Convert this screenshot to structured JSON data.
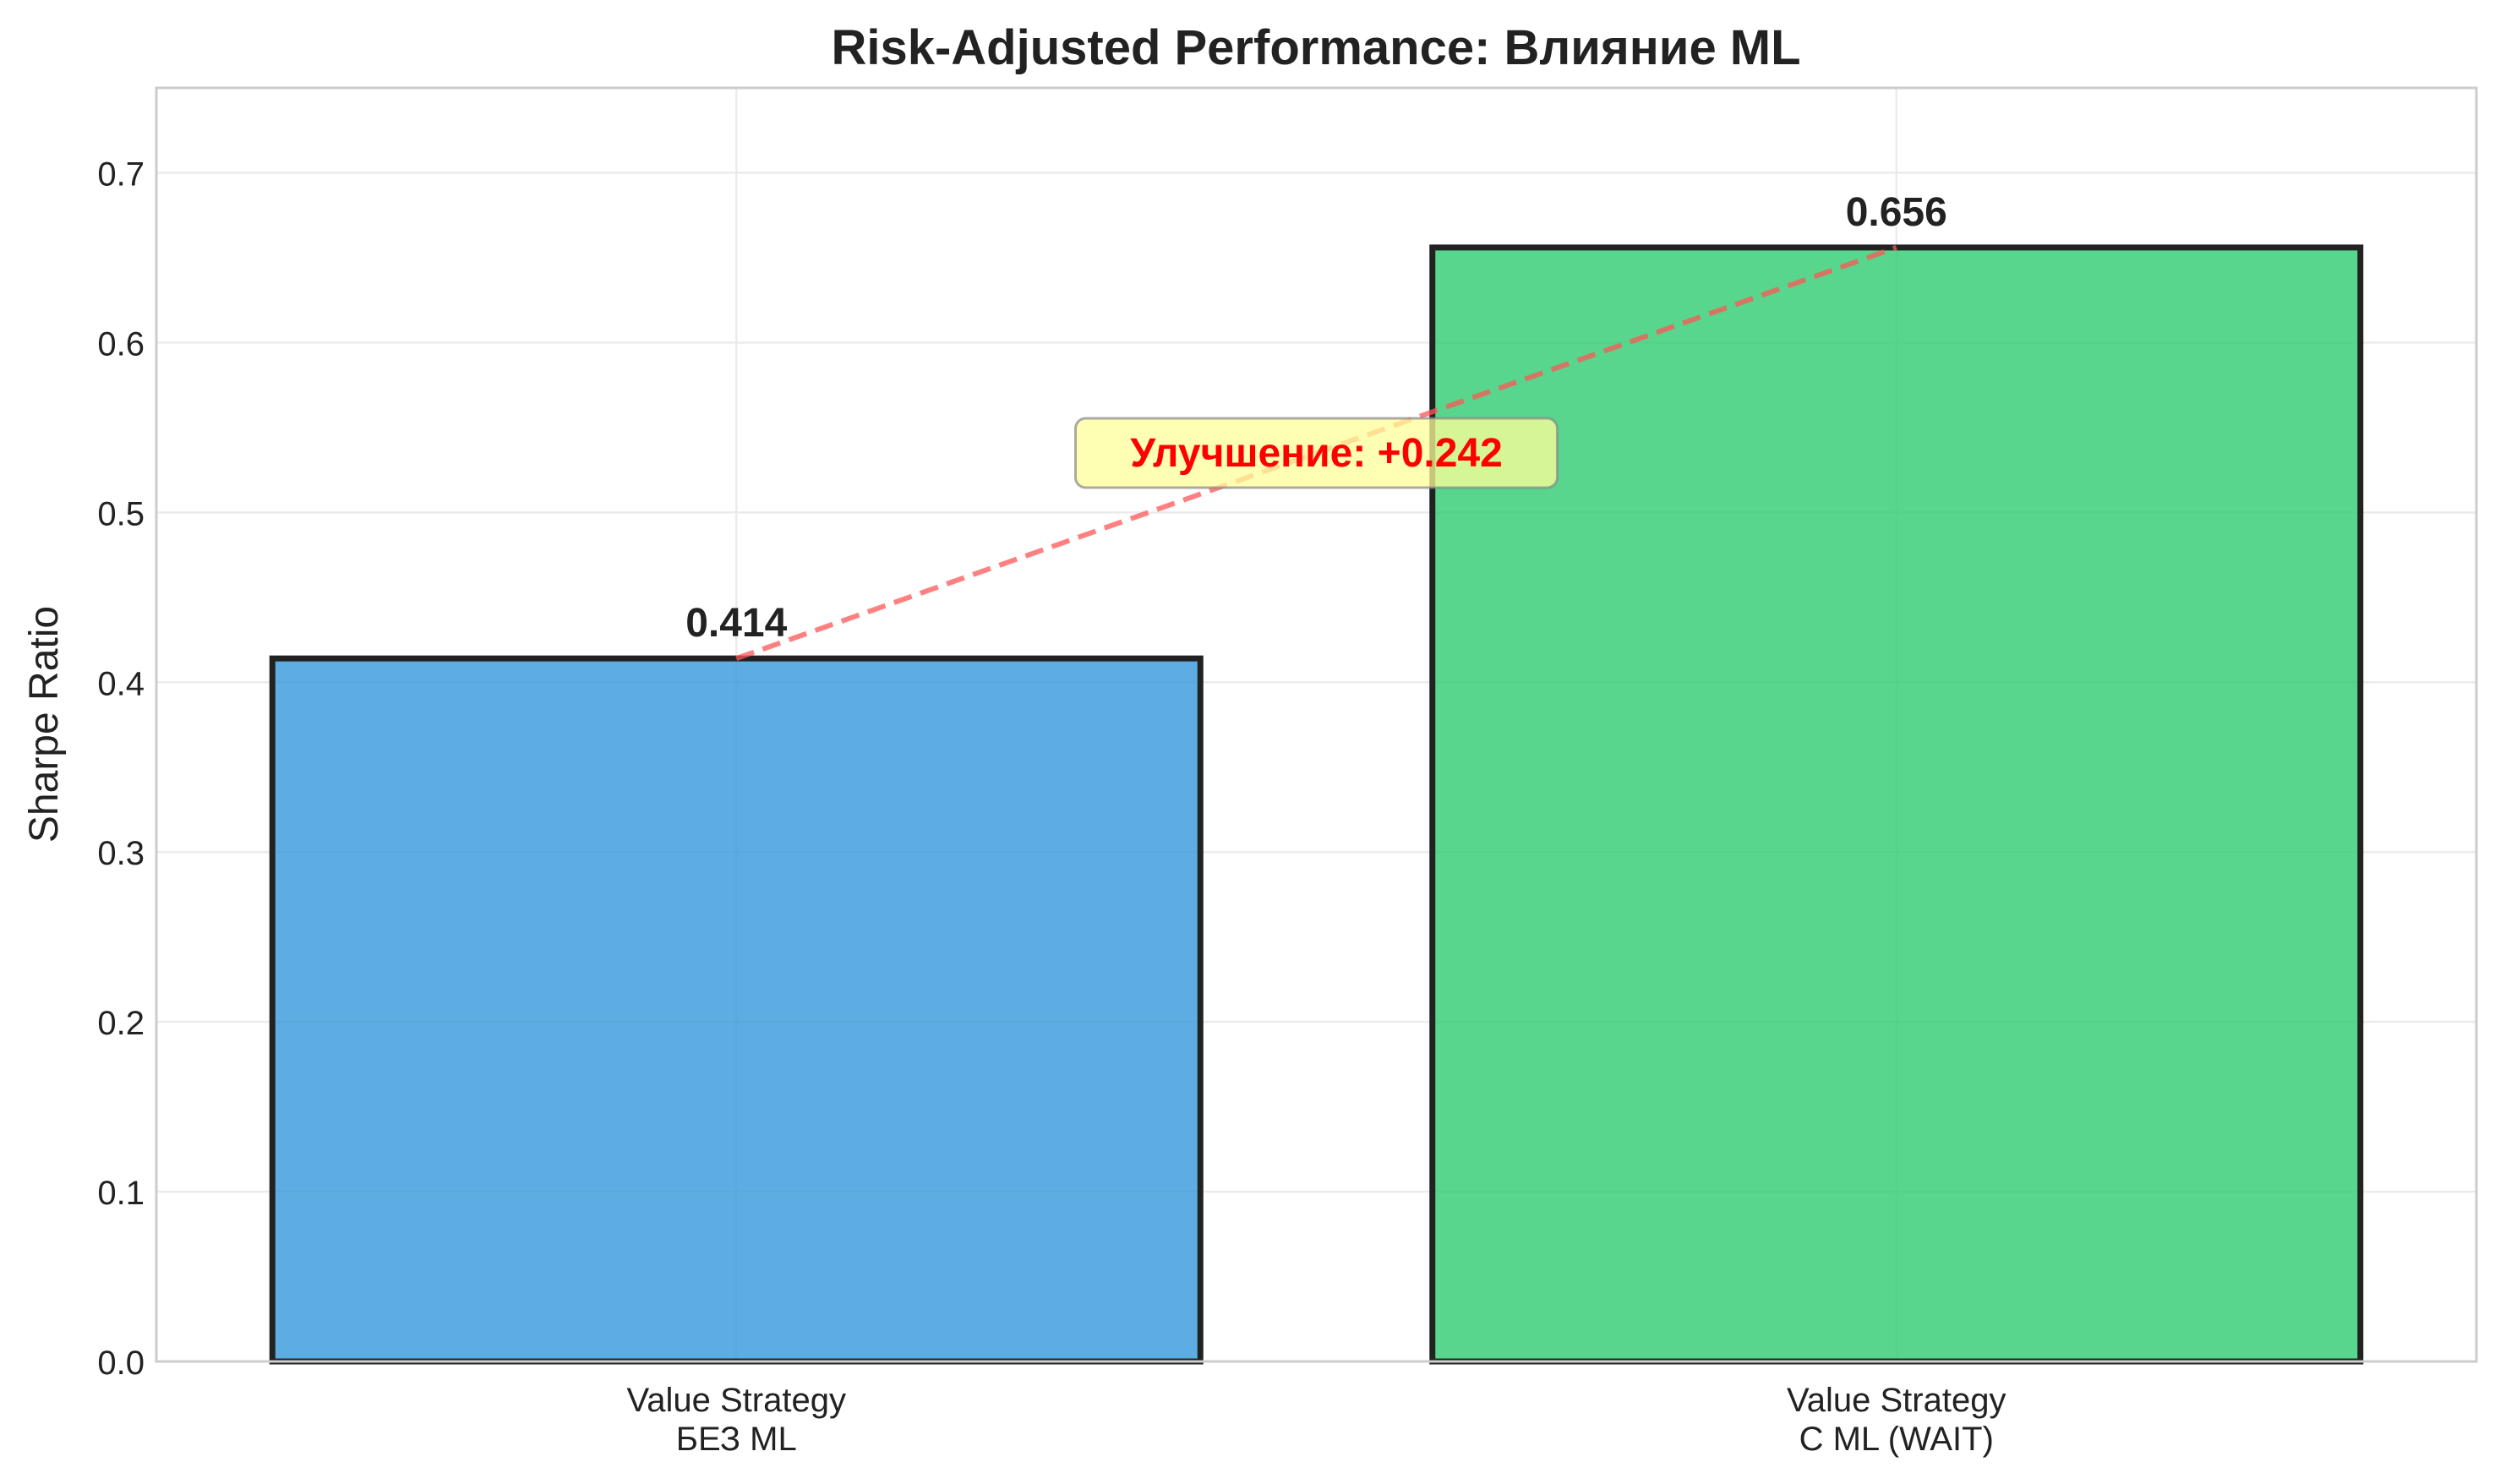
{
  "chart_data": {
    "type": "bar",
    "title": "Risk-Adjusted Performance: Влияние ML",
    "xlabel": "",
    "ylabel": "Sharpe Ratio",
    "categories": [
      [
        "Value Strategy",
        "БЕЗ ML"
      ],
      [
        "Value Strategy",
        "С ML (WAIT)"
      ]
    ],
    "values": [
      0.414,
      0.656
    ],
    "value_labels": [
      "0.414",
      "0.656"
    ],
    "colors": [
      "#3498db",
      "#2ecc71"
    ],
    "edge_color": "#222222",
    "ylim": [
      0,
      0.75
    ],
    "yticks": [
      0.0,
      0.1,
      0.2,
      0.3,
      0.4,
      0.5,
      0.6,
      0.7
    ],
    "ytick_labels": [
      "0.0",
      "0.1",
      "0.2",
      "0.3",
      "0.4",
      "0.5",
      "0.6",
      "0.7"
    ],
    "grid": true,
    "annotation": {
      "text": "Улучшение: +0.242",
      "color": "#ff0000",
      "box_color": "#ffff99",
      "y_value": 0.535
    },
    "connector": {
      "style": "dashed",
      "color": "#ff5555"
    }
  }
}
